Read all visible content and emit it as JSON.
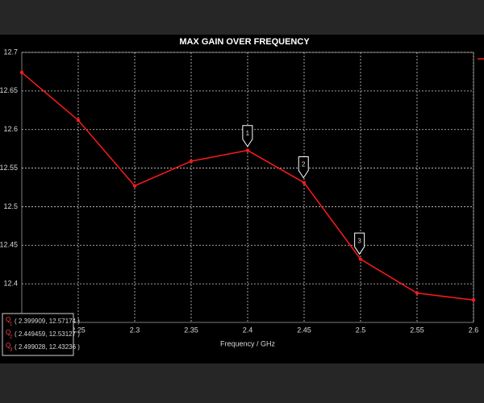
{
  "chart_data": {
    "type": "line",
    "title": "MAX GAIN OVER FREQUENCY",
    "x_label": "Frequency / GHz",
    "x": [
      2.2,
      2.25,
      2.3,
      2.35,
      2.4,
      2.45,
      2.5,
      2.55,
      2.6
    ],
    "series": [
      {
        "color": "#ff1a1a",
        "values": [
          12.674,
          12.612,
          12.527,
          12.559,
          12.573,
          12.531,
          12.432,
          12.388,
          12.379
        ]
      }
    ],
    "xlim": [
      2.2,
      2.6
    ],
    "xticks": [
      2.25,
      2.3,
      2.35,
      2.4,
      2.45,
      2.5,
      2.55,
      2.6
    ],
    "ylim": [
      12.35,
      12.7
    ],
    "yticks": [
      12.4,
      12.45,
      12.5,
      12.55,
      12.6,
      12.65,
      12.7
    ],
    "grid": true,
    "readout_prefix": "Q",
    "markers": [
      {
        "label": "1",
        "x": 2.399909,
        "y": 12.57174,
        "readout": "( 2.399909, 12.57174 )"
      },
      {
        "label": "2",
        "x": 2.449459,
        "y": 12.53127,
        "readout": "( 2.449459, 12.53127 )"
      },
      {
        "label": "3",
        "x": 2.499028,
        "y": 12.43236,
        "readout": "( 2.499028, 12.43236 )"
      }
    ]
  }
}
